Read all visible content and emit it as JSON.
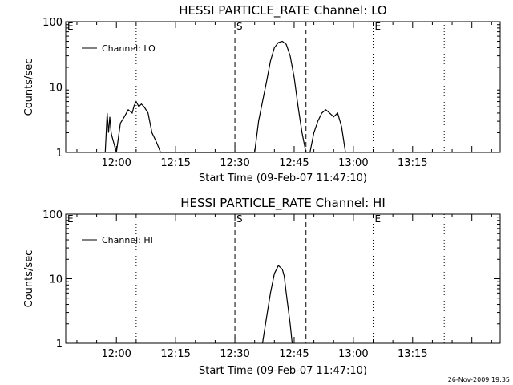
{
  "footer_stamp": "26-Nov-2009 19:35",
  "chart_data": [
    {
      "type": "line",
      "title": "HESSI PARTICLE_RATE Channel: LO",
      "xlabel": "Start Time (09-Feb-07 11:47:10)",
      "ylabel": "Counts/sec",
      "y_scale": "log",
      "ylim": [
        1,
        100
      ],
      "xlim": [
        "11:47:10",
        "13:37:10"
      ],
      "x_ticks": [
        "12:00",
        "12:15",
        "12:30",
        "12:45",
        "13:00",
        "13:15"
      ],
      "y_ticks": [
        "1",
        "10",
        "100"
      ],
      "legend": "top-left",
      "markers": [
        {
          "label": "E",
          "time": "11:47:10",
          "style": "dotted"
        },
        {
          "label": "",
          "time": "12:05",
          "style": "dotted"
        },
        {
          "label": "S",
          "time": "12:30",
          "style": "dashed"
        },
        {
          "label": "",
          "time": "12:48",
          "style": "dashed"
        },
        {
          "label": "E",
          "time": "13:05",
          "style": "dotted"
        },
        {
          "label": "",
          "time": "13:23",
          "style": "dotted"
        }
      ],
      "series": [
        {
          "name": "Channel: LO",
          "x": [
            "11:57:10",
            "11:57:40",
            "11:58:00",
            "11:58:20",
            "11:58:40",
            "11:58:50",
            "12:00:00",
            "12:01:00",
            "12:02:00",
            "12:03:00",
            "12:04:00",
            "12:04:30",
            "12:05:00",
            "12:05:40",
            "12:06:20",
            "12:07:00",
            "12:08:00",
            "12:09:00",
            "12:10:00",
            "12:10:40",
            "12:11:10",
            "12:35:00",
            "12:36:00",
            "12:37:00",
            "12:38:00",
            "12:39:00",
            "12:40:00",
            "12:41:00",
            "12:42:00",
            "12:43:00",
            "12:44:00",
            "12:45:00",
            "12:46:00",
            "12:47:00",
            "12:48:00",
            "12:49:00",
            "12:50:00",
            "12:51:00",
            "12:52:00",
            "12:53:00",
            "12:54:00",
            "12:55:00",
            "12:56:00",
            "12:57:00",
            "12:58:00"
          ],
          "y": [
            1.0,
            4.0,
            2.0,
            3.5,
            2.0,
            1.8,
            1.0,
            2.8,
            3.5,
            4.5,
            4.0,
            5.2,
            6.0,
            5.0,
            5.5,
            5.0,
            4.0,
            2.0,
            1.5,
            1.2,
            1.0,
            1.0,
            3.0,
            6.0,
            12,
            25,
            40,
            48,
            50,
            45,
            30,
            14,
            5,
            2,
            1.0,
            1.0,
            2.0,
            3.0,
            4.0,
            4.5,
            4.0,
            3.5,
            4.0,
            2.5,
            1.0
          ]
        }
      ]
    },
    {
      "type": "line",
      "title": "HESSI PARTICLE_RATE Channel: HI",
      "xlabel": "Start Time (09-Feb-07 11:47:10)",
      "ylabel": "Counts/sec",
      "y_scale": "log",
      "ylim": [
        1,
        100
      ],
      "xlim": [
        "11:47:10",
        "13:37:10"
      ],
      "x_ticks": [
        "12:00",
        "12:15",
        "12:30",
        "12:45",
        "13:00",
        "13:15"
      ],
      "y_ticks": [
        "1",
        "10",
        "100"
      ],
      "legend": "top-left",
      "markers": [
        {
          "label": "E",
          "time": "11:47:10",
          "style": "dotted"
        },
        {
          "label": "",
          "time": "12:05",
          "style": "dotted"
        },
        {
          "label": "S",
          "time": "12:30",
          "style": "dashed"
        },
        {
          "label": "",
          "time": "12:48",
          "style": "dashed"
        },
        {
          "label": "E",
          "time": "13:05",
          "style": "dotted"
        },
        {
          "label": "",
          "time": "13:23",
          "style": "dotted"
        }
      ],
      "series": [
        {
          "name": "Channel: HI",
          "x": [
            "12:37:00",
            "12:38:00",
            "12:39:00",
            "12:40:00",
            "12:41:00",
            "12:42:00",
            "12:42:30",
            "12:43:00",
            "12:44:00",
            "12:44:30"
          ],
          "y": [
            1.0,
            2.5,
            6.0,
            12,
            16,
            14,
            11,
            6,
            2,
            1.0
          ]
        }
      ]
    }
  ]
}
